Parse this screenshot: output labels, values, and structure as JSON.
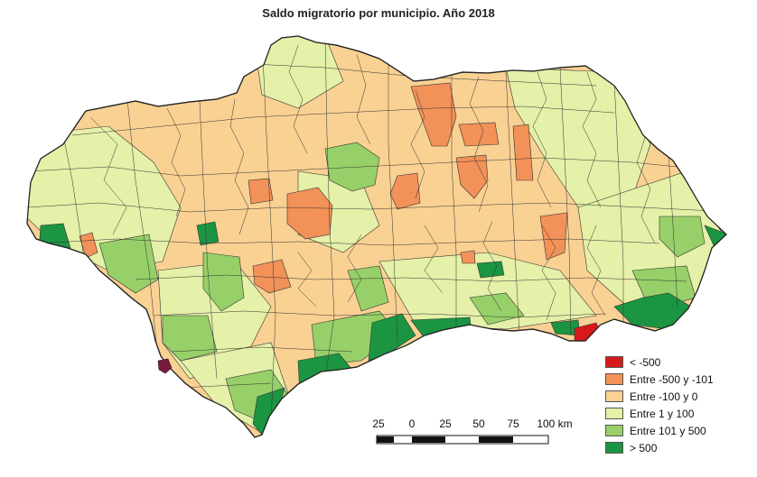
{
  "title": "Saldo migratorio por municipio. Año 2018",
  "colors": {
    "lt_minus500": "#d7191c",
    "minus500_minus101": "#f29158",
    "minus100_0": "#f9d193",
    "one_100": "#e5f0a8",
    "101_500": "#97d069",
    "gt500": "#1b9541"
  },
  "legend": [
    {
      "label": "< -500",
      "color": "#d7191c"
    },
    {
      "label": "Entre -500 y -101",
      "color": "#f29158"
    },
    {
      "label": "Entre -100 y 0",
      "color": "#f9d193"
    },
    {
      "label": "Entre 1 y 100",
      "color": "#e5f0a8"
    },
    {
      "label": "Entre 101 y 500",
      "color": "#97d069"
    },
    {
      "label": "> 500",
      "color": "#1b9541"
    }
  ],
  "scale": {
    "labels": [
      "25",
      "0",
      "25",
      "50",
      "75",
      "100 km"
    ]
  }
}
